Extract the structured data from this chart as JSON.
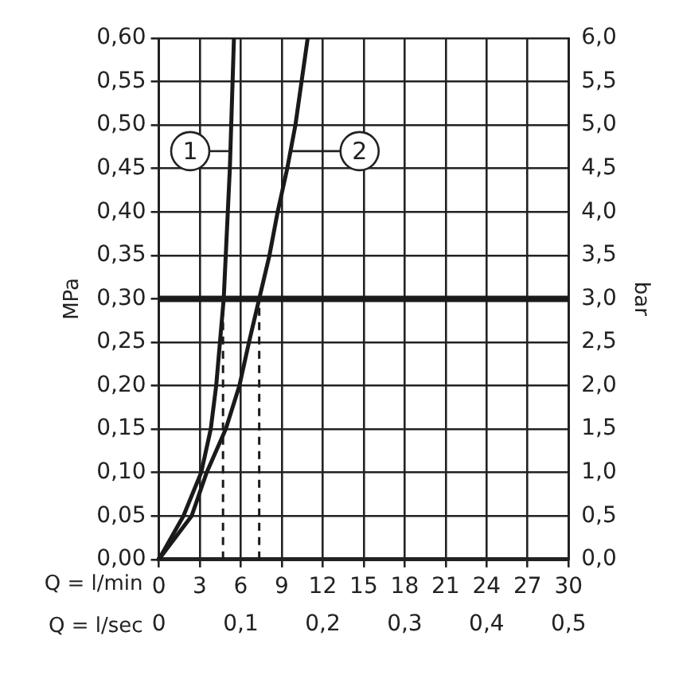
{
  "chart_data": {
    "type": "line",
    "xlabel": "Q = l/min",
    "x2label": "Q = l/sec",
    "ylabel": "MPa",
    "y2label": "bar",
    "xlim": [
      0,
      30
    ],
    "xticks": [
      0,
      3,
      6,
      9,
      12,
      15,
      18,
      21,
      24,
      27,
      30
    ],
    "x2lim": [
      0,
      0.5
    ],
    "x2ticks": [
      0,
      {
        "value": 0.1,
        "label": "0,1"
      },
      {
        "value": 0.2,
        "label": "0,2"
      },
      {
        "value": 0.3,
        "label": "0,3"
      },
      {
        "value": 0.4,
        "label": "0,4"
      },
      {
        "value": 0.5,
        "label": "0,5"
      }
    ],
    "ylim": [
      0,
      0.6
    ],
    "yticks": [
      {
        "value": 0,
        "label": "0,00"
      },
      {
        "value": 0.05,
        "label": "0,05"
      },
      {
        "value": 0.1,
        "label": "0,10"
      },
      {
        "value": 0.15,
        "label": "0,15"
      },
      {
        "value": 0.2,
        "label": "0,20"
      },
      {
        "value": 0.25,
        "label": "0,25"
      },
      {
        "value": 0.3,
        "label": "0,30"
      },
      {
        "value": 0.35,
        "label": "0,35"
      },
      {
        "value": 0.4,
        "label": "0,40"
      },
      {
        "value": 0.45,
        "label": "0,45"
      },
      {
        "value": 0.5,
        "label": "0,50"
      },
      {
        "value": 0.55,
        "label": "0,55"
      },
      {
        "value": 0.6,
        "label": "0,60"
      }
    ],
    "y2lim": [
      0,
      6
    ],
    "y2ticks": [
      {
        "value": 0,
        "label": "0,0"
      },
      {
        "value": 0.5,
        "label": "0,5"
      },
      {
        "value": 1,
        "label": "1,0"
      },
      {
        "value": 1.5,
        "label": "1,5"
      },
      {
        "value": 2,
        "label": "2,0"
      },
      {
        "value": 2.5,
        "label": "2,5"
      },
      {
        "value": 3,
        "label": "3,0"
      },
      {
        "value": 3.5,
        "label": "3,5"
      },
      {
        "value": 4,
        "label": "4,0"
      },
      {
        "value": 4.5,
        "label": "4,5"
      },
      {
        "value": 5,
        "label": "5,0"
      },
      {
        "value": 5.5,
        "label": "5,5"
      },
      {
        "value": 6,
        "label": "6,0"
      }
    ],
    "grid": true,
    "legend": false,
    "marker": "none",
    "line_style": "solid",
    "series": [
      {
        "color": "#1a1a1a",
        "x": [
          0,
          1.8,
          3.1,
          3.8,
          4.2,
          4.75,
          5.2,
          5.5
        ],
        "values": [
          0,
          0.05,
          0.1,
          0.15,
          0.2,
          0.3,
          0.45,
          0.6
        ]
      },
      {
        "color": "#1a1a1a",
        "x": [
          0,
          2.4,
          3.5,
          4.9,
          5.9,
          6.6,
          7.35,
          8.1,
          8.7,
          9.4,
          10.0,
          10.9
        ],
        "values": [
          0,
          0.05,
          0.1,
          0.15,
          0.2,
          0.25,
          0.3,
          0.35,
          0.4,
          0.45,
          0.5,
          0.6
        ]
      },
      {
        "color": "#1a1a1a",
        "line_style": "dashed",
        "x": [
          4.7,
          4.7
        ],
        "values": [
          0,
          0.3
        ]
      },
      {
        "color": "#1a1a1a",
        "line_style": "dashed",
        "x": [
          7.35,
          7.35
        ],
        "values": [
          0,
          0.3
        ]
      }
    ],
    "ref_lines": [
      {
        "axis": "y",
        "value": 0.3,
        "color": "#1a1a1a"
      }
    ],
    "annotations": [
      {
        "text": "1",
        "x": 2.3,
        "y": 0.47
      },
      {
        "text": "2",
        "x": 14.7,
        "y": 0.47
      }
    ]
  }
}
